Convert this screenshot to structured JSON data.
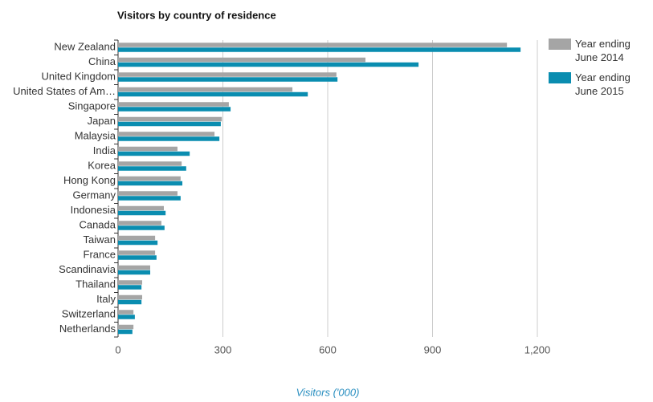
{
  "chart_data": {
    "type": "bar",
    "orientation": "horizontal",
    "title": "Visitors by country of residence",
    "x_label": "Visitors ('000)",
    "categories": [
      "New Zealand",
      "China",
      "United Kingdom",
      "United States of Am…",
      "Singapore",
      "Japan",
      "Malaysia",
      "India",
      "Korea",
      "Hong Kong",
      "Germany",
      "Indonesia",
      "Canada",
      "Taiwan",
      "France",
      "Scandinavia",
      "Thailand",
      "Italy",
      "Switzerland",
      "Netherlands"
    ],
    "series": [
      {
        "name": "Year ending June 2014",
        "color": "#a5a5a5",
        "values": [
          1113,
          708,
          625,
          499,
          317,
          297,
          276,
          170,
          182,
          179,
          170,
          131,
          124,
          106,
          106,
          92,
          69,
          69,
          44,
          44
        ]
      },
      {
        "name": "Year ending June 2015",
        "color": "#0a8db0",
        "values": [
          1152,
          860,
          628,
          543,
          322,
          294,
          290,
          205,
          195,
          184,
          179,
          136,
          133,
          113,
          110,
          92,
          67,
          67,
          48,
          41
        ]
      }
    ],
    "xlim": [
      0,
      1200
    ],
    "xticks": [
      0,
      300,
      600,
      900,
      {
        "value": 1200,
        "label": "1,200"
      }
    ],
    "grid": true,
    "legend": "right"
  }
}
